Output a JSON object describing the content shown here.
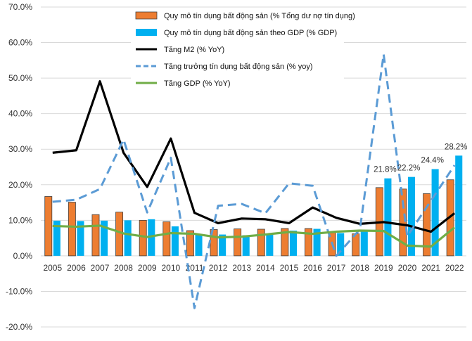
{
  "chart_data": {
    "type": "bar",
    "title": "",
    "xlabel": "",
    "ylabel": "",
    "ylim": [
      -20,
      70
    ],
    "ytick_step": 10,
    "grid": "horizontal",
    "legend_position": "top-center",
    "categories": [
      "2005",
      "2006",
      "2007",
      "2008",
      "2009",
      "2010",
      "2011",
      "2012",
      "2013",
      "2014",
      "2015",
      "2016",
      "2017",
      "2018",
      "2019",
      "2020",
      "2021",
      "2022"
    ],
    "series": [
      {
        "name": "Quy mô tín dụng bất động sản (% Tổng dư nợ tín dụng)",
        "kind": "bar",
        "color": "#ED7D31",
        "values": [
          16.7,
          15.1,
          11.6,
          12.3,
          10.0,
          9.6,
          7.1,
          7.4,
          7.6,
          7.5,
          7.7,
          7.7,
          6.6,
          6.2,
          19.2,
          18.8,
          17.5,
          21.4
        ]
      },
      {
        "name": "Quy mô tín dụng bất động sản theo GDP (% GDP)",
        "kind": "bar",
        "color": "#00B0F0",
        "values": [
          9.9,
          9.8,
          9.9,
          10.0,
          10.3,
          8.3,
          6.2,
          6.0,
          5.8,
          6.3,
          7.1,
          7.6,
          6.4,
          7.0,
          21.8,
          22.2,
          24.4,
          28.2
        ],
        "labels": {
          "14": "21.8%",
          "15": "22.2%",
          "16": "24.4%",
          "17": "28.2%"
        }
      },
      {
        "name": "Tăng M2 (% YoY)",
        "kind": "line",
        "color": "#000000",
        "values": [
          29.0,
          29.7,
          49.1,
          29.0,
          19.4,
          33.0,
          12.1,
          9.2,
          10.5,
          10.3,
          9.2,
          13.6,
          10.7,
          9.0,
          9.5,
          8.6,
          6.8,
          12.0
        ]
      },
      {
        "name": "Tăng trưởng tín dụng bất động sản (% yoy)",
        "kind": "line-dashed",
        "color": "#5B9BD5",
        "values": [
          15.2,
          15.8,
          18.8,
          32.7,
          12.2,
          27.6,
          -14.7,
          14.1,
          14.6,
          12.0,
          20.4,
          19.7,
          0.0,
          7.5,
          56.7,
          5.5,
          15.5,
          25.5
        ]
      },
      {
        "name": "Tăng GDP (% YoY)",
        "kind": "line",
        "color": "#70AD47",
        "values": [
          8.4,
          8.2,
          8.5,
          6.3,
          5.3,
          6.4,
          6.2,
          5.2,
          5.4,
          6.0,
          6.7,
          6.2,
          6.8,
          7.1,
          7.0,
          2.9,
          2.6,
          8.0
        ]
      }
    ]
  }
}
